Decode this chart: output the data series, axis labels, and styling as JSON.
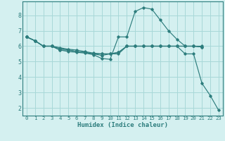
{
  "xlabel": "Humidex (Indice chaleur)",
  "bg_color": "#d4f0f0",
  "grid_color": "#a8d8d8",
  "line_color": "#2d7d7d",
  "spine_color": "#2d7d7d",
  "xlim": [
    -0.5,
    23.5
  ],
  "ylim": [
    1.5,
    8.9
  ],
  "yticks": [
    2,
    3,
    4,
    5,
    6,
    7,
    8
  ],
  "xticks": [
    0,
    1,
    2,
    3,
    4,
    5,
    6,
    7,
    8,
    9,
    10,
    11,
    12,
    13,
    14,
    15,
    16,
    17,
    18,
    19,
    20,
    21,
    22,
    23
  ],
  "series": [
    {
      "x": [
        0,
        1,
        2,
        3,
        4,
        5,
        6,
        7,
        8,
        9,
        10,
        11,
        12,
        13,
        14,
        15,
        16,
        17,
        18,
        19,
        20,
        21
      ],
      "y": [
        6.6,
        6.35,
        6.0,
        6.0,
        5.75,
        5.65,
        5.6,
        5.55,
        5.45,
        5.2,
        5.15,
        6.6,
        6.6,
        8.25,
        8.5,
        8.4,
        7.7,
        7.0,
        6.45,
        6.0,
        6.0,
        5.95
      ]
    },
    {
      "x": [
        0,
        1,
        2,
        3,
        4,
        5,
        6,
        7,
        8,
        9,
        10,
        11,
        12,
        13,
        14,
        15,
        16,
        17,
        18,
        19,
        20,
        21,
        22,
        23
      ],
      "y": [
        6.6,
        6.35,
        6.0,
        6.0,
        5.75,
        5.75,
        5.65,
        5.6,
        5.5,
        5.4,
        5.5,
        5.5,
        6.0,
        6.0,
        6.0,
        6.0,
        6.0,
        6.0,
        6.0,
        5.5,
        5.5,
        3.6,
        2.8,
        1.85
      ]
    },
    {
      "x": [
        0,
        1,
        2,
        3,
        4,
        5,
        6,
        7,
        8,
        9,
        10,
        11,
        12,
        13,
        14,
        15,
        16,
        17,
        18,
        19,
        20,
        21
      ],
      "y": [
        6.6,
        6.35,
        6.0,
        6.0,
        5.85,
        5.75,
        5.65,
        5.6,
        5.5,
        5.5,
        5.5,
        5.6,
        6.0,
        6.0,
        6.0,
        6.0,
        6.0,
        6.0,
        6.0,
        6.0,
        6.0,
        5.95
      ]
    },
    {
      "x": [
        0,
        1,
        2,
        3,
        4,
        5,
        6,
        7,
        8,
        9,
        10,
        11,
        12,
        13,
        14,
        15,
        16,
        17,
        18,
        19,
        20,
        21
      ],
      "y": [
        6.6,
        6.35,
        6.0,
        6.0,
        5.9,
        5.8,
        5.75,
        5.65,
        5.55,
        5.5,
        5.5,
        5.6,
        6.0,
        6.0,
        6.0,
        6.0,
        6.0,
        6.0,
        6.0,
        6.0,
        6.0,
        6.0
      ]
    }
  ]
}
